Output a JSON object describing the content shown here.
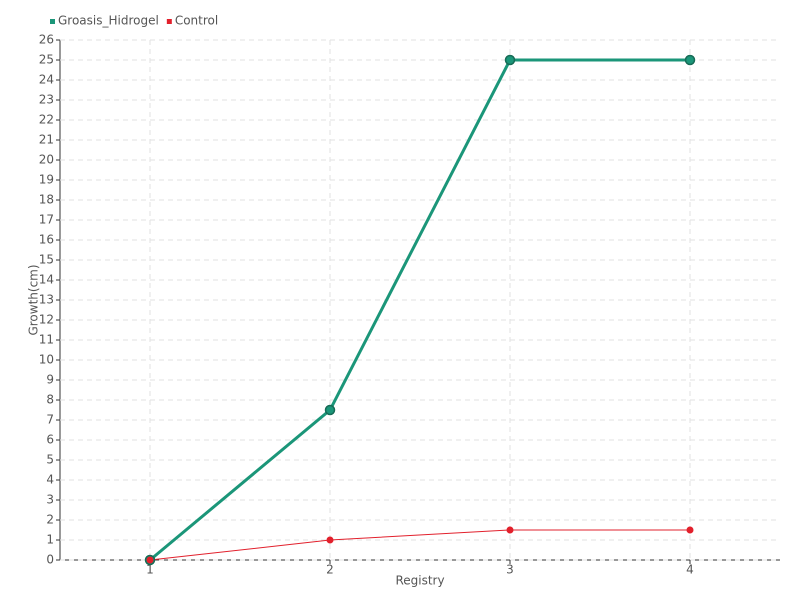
{
  "chart_data": {
    "type": "line",
    "x": [
      1,
      2,
      3,
      4
    ],
    "xlim": [
      0.5,
      4.5
    ],
    "xticks": [
      1,
      2,
      3,
      4
    ],
    "ylim": [
      0,
      26
    ],
    "yticks": [
      0,
      1,
      2,
      3,
      4,
      5,
      6,
      7,
      8,
      9,
      10,
      11,
      12,
      13,
      14,
      15,
      16,
      17,
      18,
      19,
      20,
      21,
      22,
      23,
      24,
      25,
      26
    ],
    "x_label": "Registry",
    "y_label": "Growth(cm)",
    "grid": true,
    "legend": "top-left",
    "series": [
      {
        "name": "Groasis_Hidrogel",
        "color": "#1b9679",
        "values": [
          0,
          7.5,
          25,
          25
        ]
      },
      {
        "name": "Control",
        "color": "#e2202c",
        "values": [
          0,
          1,
          1.5,
          1.5
        ]
      }
    ]
  }
}
